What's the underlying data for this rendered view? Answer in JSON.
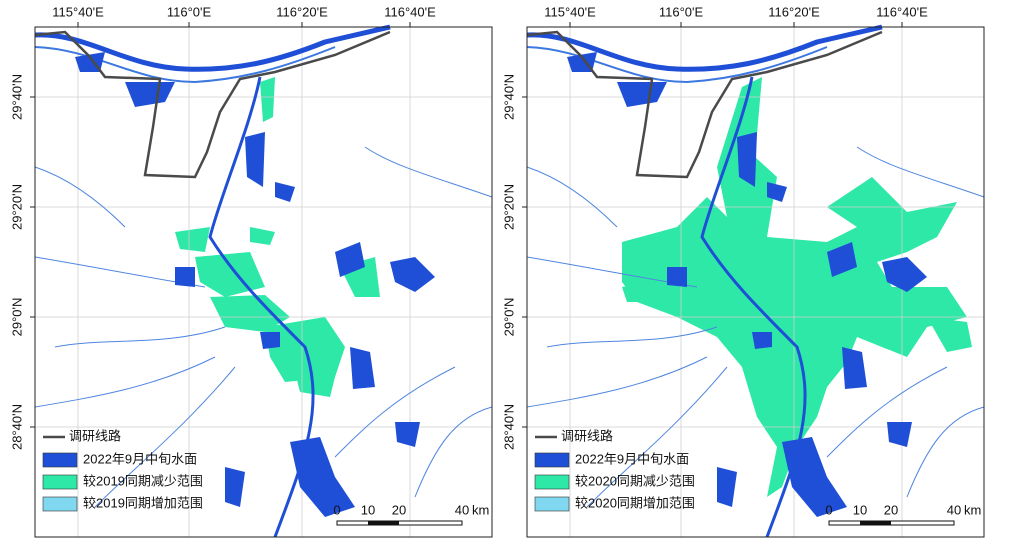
{
  "panels": [
    {
      "lon_labels": [
        "115°40'E",
        "116°0'E",
        "116°20'E",
        "116°40'E"
      ],
      "lat_labels": [
        "29°40'N",
        "29°20'N",
        "29°0'N",
        "28°40'N"
      ],
      "legend": [
        "调研线路",
        "2022年9月中旬水面",
        "较2019同期减少范围",
        "较2019同期增加范围"
      ],
      "scale": {
        "labels": [
          "0",
          "10",
          "20",
          "40"
        ],
        "unit": "km"
      }
    },
    {
      "lon_labels": [
        "115°40'E",
        "116°0'E",
        "116°20'E",
        "116°40'E"
      ],
      "lat_labels": [
        "29°40'N",
        "29°20'N",
        "29°0'N",
        "28°40'N"
      ],
      "legend": [
        "调研线路",
        "2022年9月中旬水面",
        "较2020同期减少范围",
        "较2020同期增加范围"
      ],
      "scale": {
        "labels": [
          "0",
          "10",
          "20",
          "40"
        ],
        "unit": "km"
      }
    }
  ]
}
